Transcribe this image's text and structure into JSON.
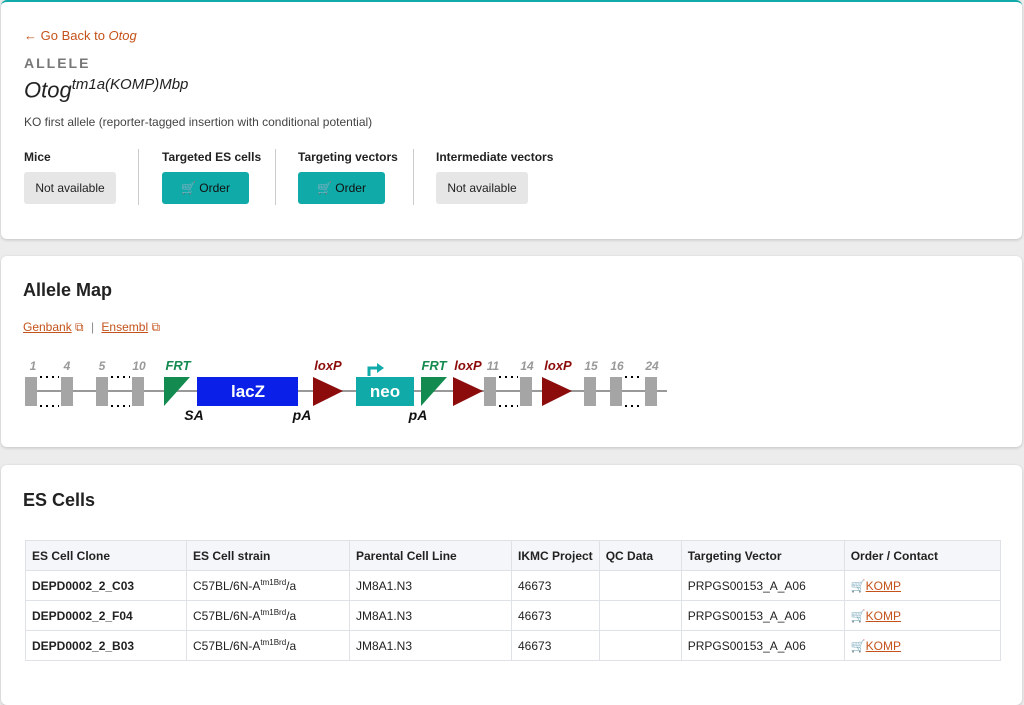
{
  "header": {
    "back_prefix": "Go Back to ",
    "back_gene": "Otog",
    "kicker": "ALLELE",
    "gene": "Otog",
    "allele_sup": "tm1a(KOMP)Mbp",
    "description": "KO first allele (reporter-tagged insertion with conditional potential)"
  },
  "availability": [
    {
      "label": "Mice",
      "button": "Not available"
    },
    {
      "label": "Targeted ES cells",
      "button": "Order"
    },
    {
      "label": "Targeting vectors",
      "button": "Order"
    },
    {
      "label": "Intermediate vectors",
      "button": "Not available"
    }
  ],
  "allele_map": {
    "title": "Allele Map",
    "links": [
      "Genbank",
      "Ensembl"
    ],
    "separator": "|",
    "labels": {
      "exons": [
        "1",
        "4",
        "5",
        "10",
        "11",
        "14",
        "15",
        "16",
        "24"
      ],
      "frt": [
        "FRT",
        "FRT"
      ],
      "loxp": [
        "loxP",
        "loxP",
        "loxP"
      ],
      "lacz": "lacZ",
      "neo": "neo",
      "sa": "SA",
      "pa": [
        "pA",
        "pA"
      ]
    }
  },
  "es_cells": {
    "title": "ES Cells",
    "headers": [
      "ES Cell Clone",
      "ES Cell strain",
      "Parental Cell Line",
      "IKMC Project",
      "QC Data",
      "Targeting Vector",
      "Order / Contact"
    ],
    "rows": [
      {
        "clone": "DEPD0002_2_C03",
        "strain": "C57BL/6N-A",
        "strain_sup": "tm1Brd",
        "strain_suffix": "/a",
        "parental": "JM8A1.N3",
        "project": "46673",
        "vector": "PRPGS00153_A_A06",
        "order": "KOMP"
      },
      {
        "clone": "DEPD0002_2_F04",
        "strain": "C57BL/6N-A",
        "strain_sup": "tm1Brd",
        "strain_suffix": "/a",
        "parental": "JM8A1.N3",
        "project": "46673",
        "vector": "PRPGS00153_A_A06",
        "order": "KOMP"
      },
      {
        "clone": "DEPD0002_2_B03",
        "strain": "C57BL/6N-A",
        "strain_sup": "tm1Brd",
        "strain_suffix": "/a",
        "parental": "JM8A1.N3",
        "project": "46673",
        "vector": "PRPGS00153_A_A06",
        "order": "KOMP"
      }
    ]
  }
}
